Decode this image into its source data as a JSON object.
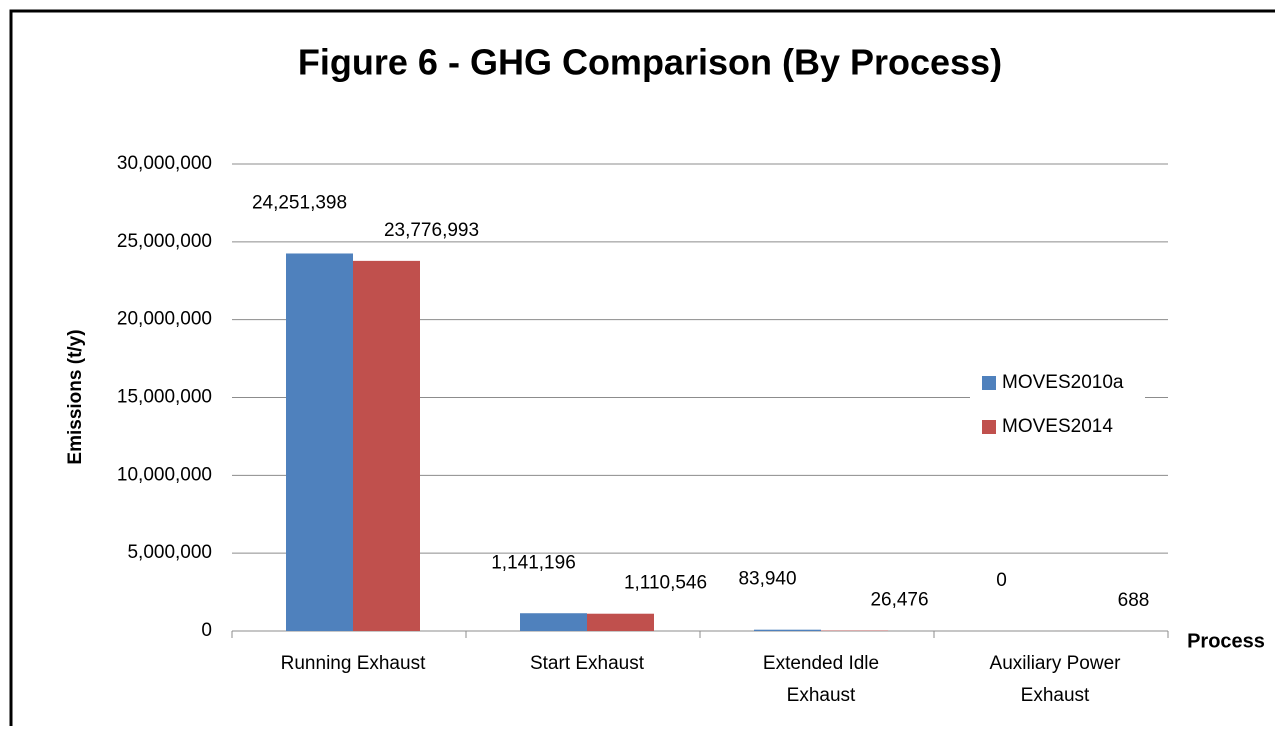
{
  "chart_data": {
    "type": "bar",
    "title": "Figure 6 - GHG Comparison (By Process)",
    "y_label": "Emissions (t/y)",
    "x_label": "Process",
    "categories": [
      "Running Exhaust",
      "Start Exhaust",
      "Extended Idle Exhaust",
      "Auxiliary Power Exhaust"
    ],
    "series": [
      {
        "name": "MOVES2010a",
        "color": "#4f81bd",
        "values": [
          24251398,
          1141196,
          83940,
          0
        ],
        "value_labels": [
          "24,251,398",
          "1,141,196",
          "83,940",
          "0"
        ]
      },
      {
        "name": "MOVES2014",
        "color": "#c0504d",
        "values": [
          23776993,
          1110546,
          26476,
          688
        ],
        "value_labels": [
          "23,776,993",
          "1,110,546",
          "26,476",
          "688"
        ]
      }
    ],
    "ylim": [
      0,
      30000000
    ],
    "yticks": [
      0,
      {
        "value": 5000000,
        "label": "5,000,000"
      },
      {
        "value": 10000000,
        "label": "10,000,000"
      },
      {
        "value": 15000000,
        "label": "15,000,000"
      },
      {
        "value": 20000000,
        "label": "20,000,000"
      },
      {
        "value": 25000000,
        "label": "25,000,000"
      },
      {
        "value": 30000000,
        "label": "30,000,000"
      }
    ],
    "grid": true,
    "legend": "right"
  }
}
